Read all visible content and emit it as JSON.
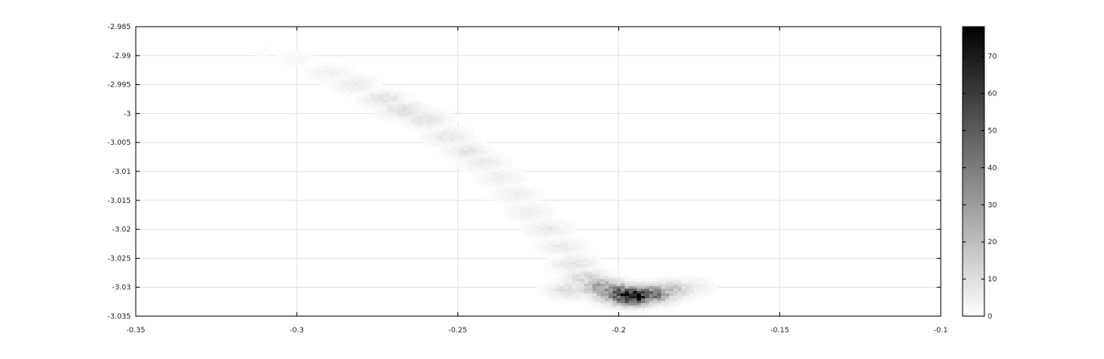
{
  "chart_data": {
    "type": "heatmap",
    "title": "",
    "xlabel": "",
    "ylabel": "",
    "xlim": [
      -0.35,
      -0.1
    ],
    "ylim": [
      -3.035,
      -2.985
    ],
    "x_ticks": [
      "-0.35",
      "-0.3",
      "-0.25",
      "-0.2",
      "-0.15",
      "-0.1"
    ],
    "y_ticks": [
      "-2.985",
      "-2.99",
      "-2.995",
      "-3",
      "-3.005",
      "-3.01",
      "-3.015",
      "-3.02",
      "-3.025",
      "-3.03",
      "-3.035"
    ],
    "grid": true,
    "colormap": "gray-reversed",
    "colorbar": {
      "range": [
        0,
        78
      ],
      "ticks": [
        "0",
        "10",
        "20",
        "30",
        "40",
        "50",
        "60",
        "70"
      ]
    },
    "density_points": [
      {
        "x": -0.312,
        "y": -2.9892,
        "v": 1
      },
      {
        "x": -0.3,
        "y": -2.9905,
        "v": 2
      },
      {
        "x": -0.29,
        "y": -2.993,
        "v": 4
      },
      {
        "x": -0.282,
        "y": -2.995,
        "v": 6
      },
      {
        "x": -0.273,
        "y": -2.9975,
        "v": 8
      },
      {
        "x": -0.267,
        "y": -2.9995,
        "v": 9
      },
      {
        "x": -0.26,
        "y": -3.001,
        "v": 8
      },
      {
        "x": -0.253,
        "y": -3.004,
        "v": 7
      },
      {
        "x": -0.247,
        "y": -3.0065,
        "v": 7
      },
      {
        "x": -0.242,
        "y": -3.0085,
        "v": 6
      },
      {
        "x": -0.237,
        "y": -3.011,
        "v": 5
      },
      {
        "x": -0.232,
        "y": -3.014,
        "v": 5
      },
      {
        "x": -0.228,
        "y": -3.017,
        "v": 5
      },
      {
        "x": -0.222,
        "y": -3.02,
        "v": 6
      },
      {
        "x": -0.218,
        "y": -3.023,
        "v": 6
      },
      {
        "x": -0.214,
        "y": -3.026,
        "v": 8
      },
      {
        "x": -0.21,
        "y": -3.0285,
        "v": 12
      },
      {
        "x": -0.205,
        "y": -3.03,
        "v": 30
      },
      {
        "x": -0.2,
        "y": -3.031,
        "v": 50
      },
      {
        "x": -0.196,
        "y": -3.0315,
        "v": 78
      },
      {
        "x": -0.19,
        "y": -3.0312,
        "v": 45
      },
      {
        "x": -0.184,
        "y": -3.0305,
        "v": 20
      },
      {
        "x": -0.178,
        "y": -3.03,
        "v": 6
      },
      {
        "x": -0.215,
        "y": -3.0305,
        "v": 10
      }
    ]
  }
}
